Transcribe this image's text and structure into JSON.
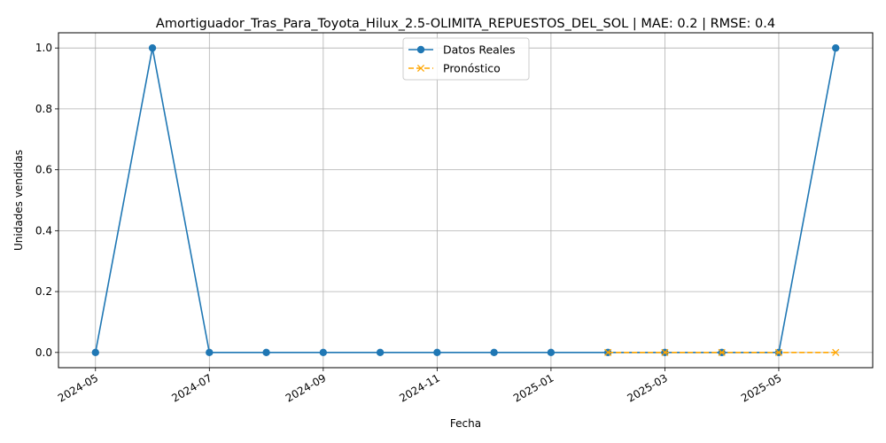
{
  "chart_data": {
    "type": "line",
    "title": "Amortiguador_Tras_Para_Toyota_Hilux_2.5-OLIMITA_REPUESTOS_DEL_SOL | MAE: 0.2 | RMSE: 0.4",
    "xlabel": "Fecha",
    "ylabel": "Unidades vendidas",
    "ylim": [
      -0.05,
      1.05
    ],
    "grid": true,
    "legend_position": "top-center",
    "x_ticks": [
      "2024-05",
      "2024-07",
      "2024-09",
      "2024-11",
      "2025-01",
      "2025-03",
      "2025-05"
    ],
    "y_ticks": [
      "0.0",
      "0.2",
      "0.4",
      "0.6",
      "0.8",
      "1.0"
    ],
    "series": [
      {
        "name": "Datos Reales",
        "color": "#1f77b4",
        "style": "solid",
        "marker": "circle",
        "x": [
          "2024-05",
          "2024-06",
          "2024-07",
          "2024-08",
          "2024-09",
          "2024-10",
          "2024-11",
          "2024-12",
          "2025-01",
          "2025-02",
          "2025-03",
          "2025-04",
          "2025-05",
          "2025-06"
        ],
        "values": [
          0,
          1,
          0,
          0,
          0,
          0,
          0,
          0,
          0,
          0,
          0,
          0,
          0,
          1
        ]
      },
      {
        "name": "Pronóstico",
        "color": "#ffa500",
        "style": "dashed",
        "marker": "x",
        "x": [
          "2025-02",
          "2025-03",
          "2025-04",
          "2025-05",
          "2025-06"
        ],
        "values": [
          0,
          0,
          0,
          0,
          0
        ]
      }
    ]
  }
}
